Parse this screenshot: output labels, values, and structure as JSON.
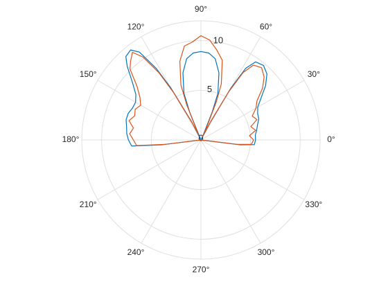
{
  "chart_data": {
    "type": "polar",
    "x": [
      -8,
      -7,
      -5,
      0,
      5,
      10,
      15,
      20,
      25,
      30,
      35,
      40,
      45,
      50,
      55,
      58,
      60,
      62,
      64,
      65,
      68,
      70,
      75,
      80,
      85,
      90,
      95,
      100,
      105,
      110,
      112,
      115,
      117,
      120,
      122,
      125,
      128,
      132,
      135,
      140,
      145,
      150,
      155,
      160,
      165,
      170,
      175,
      180,
      185,
      187,
      188
    ],
    "series": [
      {
        "color": "#0072BD",
        "values": [
          0,
          4,
          5.4,
          5.5,
          5.5,
          5.7,
          5.9,
          6.2,
          6.3,
          6.6,
          7.4,
          8.5,
          9.4,
          9.8,
          9.6,
          8.5,
          6,
          2,
          0,
          0.5,
          3,
          5,
          7,
          8.3,
          8.8,
          8.9,
          8.8,
          8.3,
          7,
          5,
          3,
          0,
          2,
          6,
          8.5,
          10.8,
          11.5,
          11.3,
          10.5,
          9,
          8,
          7.6,
          7.6,
          7.8,
          7.8,
          7.6,
          7.5,
          7.3,
          7,
          4,
          0
        ]
      },
      {
        "color": "#D95319",
        "values": [
          0,
          3.6,
          5.1,
          5.3,
          4.9,
          5.6,
          5.2,
          6.0,
          5.7,
          6.4,
          6.9,
          8.1,
          9.0,
          9.5,
          9.2,
          8.0,
          5.6,
          2.3,
          0.4,
          1.2,
          4.1,
          6.0,
          8.3,
          9.2,
          10.1,
          10.5,
          9.9,
          9.6,
          8.2,
          5.9,
          3.8,
          0.6,
          1.8,
          5.5,
          8.0,
          10.2,
          11.2,
          10.6,
          10.1,
          8.4,
          7.5,
          7.0,
          7.3,
          7.1,
          7.5,
          6.9,
          7.2,
          6.8,
          6.5,
          3.6,
          0
        ]
      }
    ],
    "rlim": [
      0,
      12
    ],
    "rticks": [
      0,
      5,
      10
    ],
    "thetaticks": [
      {
        "value": 0,
        "label": "0°"
      },
      {
        "value": 30,
        "label": "30°"
      },
      {
        "value": 60,
        "label": "60°"
      },
      {
        "value": 90,
        "label": "90°"
      },
      {
        "value": 120,
        "label": "120°"
      },
      {
        "value": 150,
        "label": "150°"
      },
      {
        "value": 180,
        "label": "180°"
      },
      {
        "value": 210,
        "label": "210°"
      },
      {
        "value": 240,
        "label": "240°"
      },
      {
        "value": 270,
        "label": "270°"
      },
      {
        "value": 300,
        "label": "300°"
      },
      {
        "value": 330,
        "label": "330°"
      }
    ],
    "grid": true
  }
}
